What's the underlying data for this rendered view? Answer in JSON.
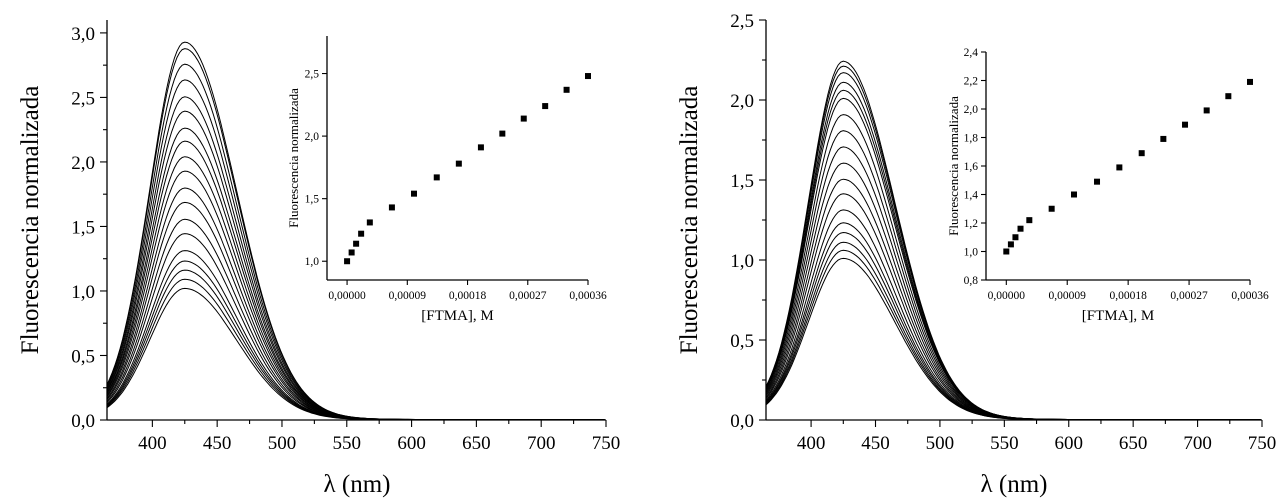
{
  "chart_data": [
    {
      "type": "line",
      "xlabel": "λ (nm)",
      "ylabel": "Fluorescencia normalizada",
      "xlim": [
        365,
        750
      ],
      "ylim": [
        0,
        3.1
      ],
      "xticks": [
        400,
        450,
        500,
        550,
        600,
        650,
        700,
        750
      ],
      "yticks": [
        0.0,
        0.5,
        1.0,
        1.5,
        2.0,
        2.5,
        3.0
      ],
      "ytick_labels": [
        "0,0",
        "0,5",
        "1,0",
        "1,5",
        "2,0",
        "2,5",
        "3,0"
      ],
      "peak_x": 425,
      "series_peak_values": [
        1.01,
        1.08,
        1.15,
        1.22,
        1.3,
        1.43,
        1.54,
        1.67,
        1.78,
        1.91,
        2.02,
        2.14,
        2.24,
        2.37,
        2.48,
        2.61,
        2.73,
        2.85,
        2.9
      ],
      "inset": {
        "type": "scatter",
        "xlabel": "[FTMA], M",
        "ylabel": "Fluorescencia normalizada",
        "xlim": [
          -3e-05,
          0.00036
        ],
        "ylim": [
          0.85,
          2.8
        ],
        "xticks": [
          0,
          9e-05,
          0.00018,
          0.00027,
          0.00036
        ],
        "xtick_labels": [
          "0,00000",
          "0,00009",
          "0,00018",
          "0,00027",
          "0,00036"
        ],
        "yticks": [
          1.0,
          1.5,
          2.0,
          2.5
        ],
        "ytick_labels": [
          "1,0",
          "1,5",
          "2,0",
          "2,5"
        ],
        "x": [
          0,
          6.8e-06,
          1.35e-05,
          2.1e-05,
          3.4e-05,
          6.7e-05,
          0.0001,
          0.000134,
          0.000167,
          0.0002,
          0.000232,
          0.000264,
          0.000296,
          0.000328,
          0.00036
        ],
        "y": [
          1.0,
          1.07,
          1.14,
          1.22,
          1.31,
          1.43,
          1.54,
          1.67,
          1.78,
          1.91,
          2.02,
          2.14,
          2.24,
          2.37,
          2.48
        ]
      }
    },
    {
      "type": "line",
      "xlabel": "λ (nm)",
      "ylabel": "Fluorescencia normalizada",
      "xlim": [
        365,
        750
      ],
      "ylim": [
        0,
        2.5
      ],
      "xticks": [
        400,
        450,
        500,
        550,
        600,
        650,
        700,
        750
      ],
      "yticks": [
        0.0,
        0.5,
        1.0,
        1.5,
        2.0,
        2.5
      ],
      "ytick_labels": [
        "0,0",
        "0,5",
        "1,0",
        "1,5",
        "2,0",
        "2,5"
      ],
      "peak_x": 425,
      "series_peak_values": [
        1.0,
        1.05,
        1.1,
        1.16,
        1.22,
        1.3,
        1.4,
        1.49,
        1.59,
        1.69,
        1.79,
        1.89,
        1.99,
        2.04,
        2.09,
        2.15,
        2.19,
        2.22
      ],
      "inset": {
        "type": "scatter",
        "xlabel": "[FTMA], M",
        "ylabel": "Fluorescencia normalizada",
        "xlim": [
          -3e-05,
          0.00036
        ],
        "ylim": [
          0.8,
          2.4
        ],
        "xticks": [
          0,
          9e-05,
          0.00018,
          0.00027,
          0.00036
        ],
        "xtick_labels": [
          "0,00000",
          "0,00009",
          "0,00018",
          "0,00027",
          "0,00036"
        ],
        "yticks": [
          0.8,
          1.0,
          1.2,
          1.4,
          1.6,
          1.8,
          2.0,
          2.2,
          2.4
        ],
        "ytick_labels": [
          "0,8",
          "1,0",
          "1,2",
          "1,4",
          "1,6",
          "1,8",
          "2,0",
          "2,2",
          "2,4"
        ],
        "x": [
          0,
          6.8e-06,
          1.35e-05,
          2.1e-05,
          3.4e-05,
          6.7e-05,
          0.0001,
          0.000134,
          0.000167,
          0.0002,
          0.000232,
          0.000264,
          0.000296,
          0.000328,
          0.00036
        ],
        "y": [
          1.0,
          1.05,
          1.1,
          1.16,
          1.22,
          1.3,
          1.4,
          1.49,
          1.59,
          1.69,
          1.79,
          1.89,
          1.99,
          2.09,
          2.19
        ]
      }
    }
  ]
}
